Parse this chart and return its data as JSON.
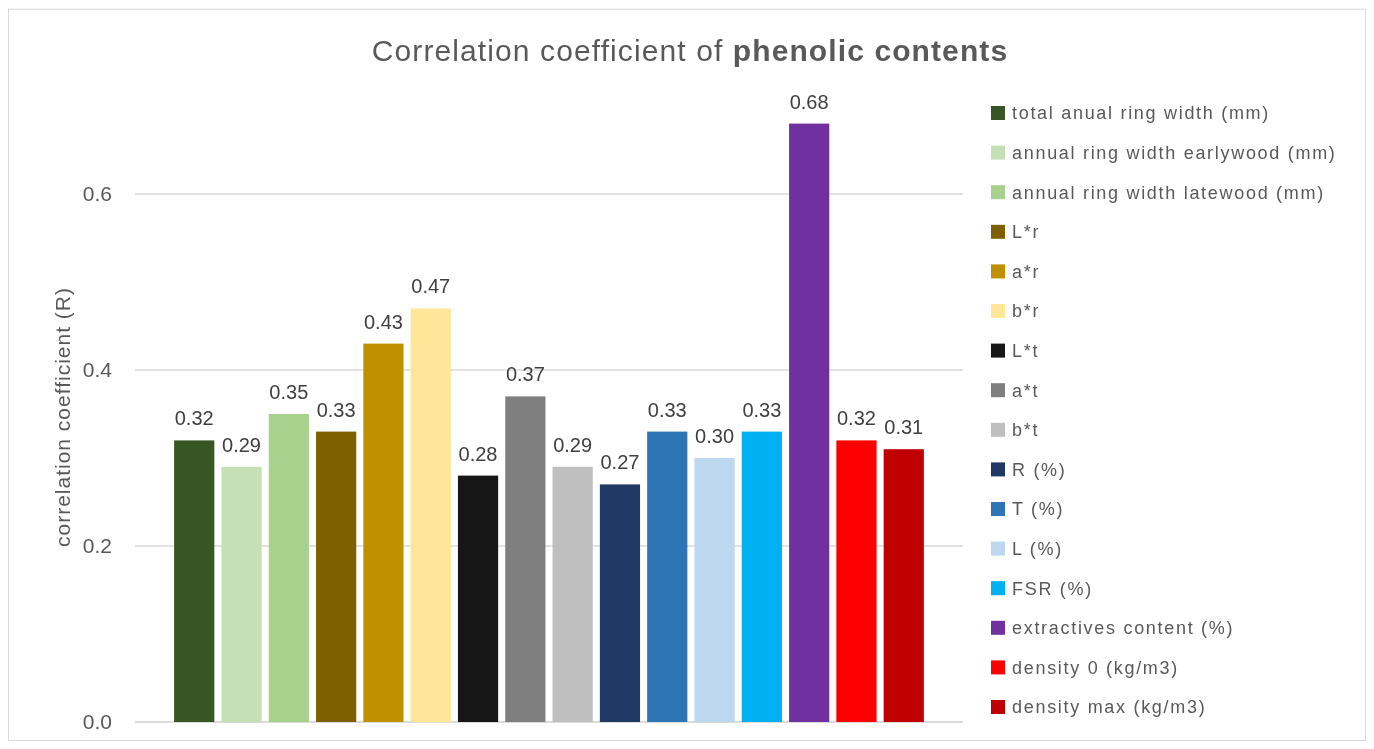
{
  "chart_data": {
    "type": "bar",
    "title": "Correlation coefficient of phenolic contents",
    "ylabel": "correlation coefficient (R)",
    "categories": [
      null
    ],
    "series": [
      {
        "name": "total anual ring width (mm)",
        "color": "#375623",
        "values": [
          0.32
        ],
        "value_labels": [
          "0.32"
        ]
      },
      {
        "name": "annual ring width earlywood (mm)",
        "color": "#c5e0b4",
        "values": [
          0.29
        ],
        "value_labels": [
          "0.29"
        ]
      },
      {
        "name": "annual ring width latewood (mm)",
        "color": "#a9d18e",
        "values": [
          0.35
        ],
        "value_labels": [
          "0.35"
        ]
      },
      {
        "name": "L*r",
        "color": "#7f6000",
        "values": [
          0.33
        ],
        "value_labels": [
          "0.33"
        ]
      },
      {
        "name": "a*r",
        "color": "#bf9000",
        "values": [
          0.43
        ],
        "value_labels": [
          "0.43"
        ]
      },
      {
        "name": "b*r",
        "color": "#ffe699",
        "values": [
          0.47
        ],
        "value_labels": [
          "0.47"
        ]
      },
      {
        "name": "L*t",
        "color": "#171717",
        "values": [
          0.28
        ],
        "value_labels": [
          "0.28"
        ]
      },
      {
        "name": "a*t",
        "color": "#7f7f7f",
        "values": [
          0.37
        ],
        "value_labels": [
          "0.37"
        ]
      },
      {
        "name": "b*t",
        "color": "#bfbfbf",
        "values": [
          0.29
        ],
        "value_labels": [
          "0.29"
        ]
      },
      {
        "name": "R (%)",
        "color": "#203864",
        "values": [
          0.27
        ],
        "value_labels": [
          "0.27"
        ]
      },
      {
        "name": "T (%)",
        "color": "#2e75b6",
        "values": [
          0.33
        ],
        "value_labels": [
          "0.33"
        ]
      },
      {
        "name": "L (%)",
        "color": "#bdd7ee",
        "values": [
          0.3
        ],
        "value_labels": [
          "0.30"
        ]
      },
      {
        "name": "FSR (%)",
        "color": "#00b0f0",
        "values": [
          0.33
        ],
        "value_labels": [
          "0.33"
        ]
      },
      {
        "name": "extractives content (%)",
        "color": "#7030a0",
        "values": [
          0.68
        ],
        "value_labels": [
          "0.68"
        ]
      },
      {
        "name": "density 0 (kg/m3)",
        "color": "#ff0000",
        "values": [
          0.32
        ],
        "value_labels": [
          "0.32"
        ]
      },
      {
        "name": "density max (kg/m3)",
        "color": "#c00000",
        "values": [
          0.31
        ],
        "value_labels": [
          "0.31"
        ]
      }
    ],
    "ylim": [
      0,
      0.81
    ],
    "yticks": [
      {
        "value": 0,
        "label": "0.0"
      },
      {
        "value": 0.2,
        "label": "0.2"
      },
      {
        "value": 0.4,
        "label": "0.4"
      },
      {
        "value": 0.6,
        "label": "0.6"
      }
    ],
    "grid": "y",
    "legend": "right"
  }
}
